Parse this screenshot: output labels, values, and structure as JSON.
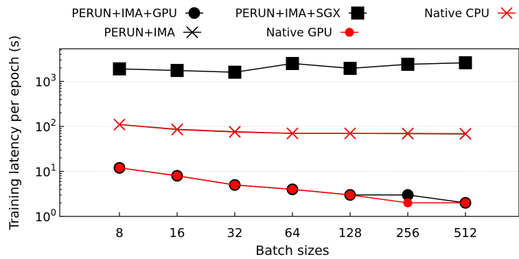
{
  "chart_data": {
    "type": "line",
    "xlabel": "Batch sizes",
    "ylabel": "Training latency per epoch (s)",
    "y_scale": "log",
    "ylim": [
      1,
      5000
    ],
    "grid": "y-dotted",
    "legend_placement": "top",
    "categories": [
      "8",
      "16",
      "32",
      "64",
      "128",
      "256",
      "512"
    ],
    "y_ticks": [
      {
        "value": 1,
        "base": "10",
        "exp": "0"
      },
      {
        "value": 10,
        "base": "10",
        "exp": "1"
      },
      {
        "value": 100,
        "base": "10",
        "exp": "2"
      },
      {
        "value": 1000,
        "base": "10",
        "exp": "3"
      }
    ],
    "series": [
      {
        "name": "PERUN+IMA+GPU",
        "marker": "circle",
        "color": "#000000",
        "values": [
          12,
          8,
          5,
          4,
          3,
          3,
          2
        ]
      },
      {
        "name": "PERUN+IMA+SGX",
        "marker": "square",
        "color": "#000000",
        "values": [
          1900,
          1750,
          1600,
          2500,
          1950,
          2400,
          2600
        ]
      },
      {
        "name": "Native CPU",
        "marker": "x",
        "color": "#ff0000",
        "values": [
          110,
          85,
          75,
          70,
          70,
          70,
          69
        ]
      },
      {
        "name": "PERUN+IMA",
        "marker": "x",
        "color": "#000000",
        "values": [
          110,
          86,
          76,
          70,
          70,
          69,
          68
        ]
      },
      {
        "name": "Native GPU",
        "marker": "dot",
        "color": "#ff0000",
        "values": [
          12,
          8,
          5,
          4,
          3,
          2,
          2
        ]
      }
    ]
  }
}
